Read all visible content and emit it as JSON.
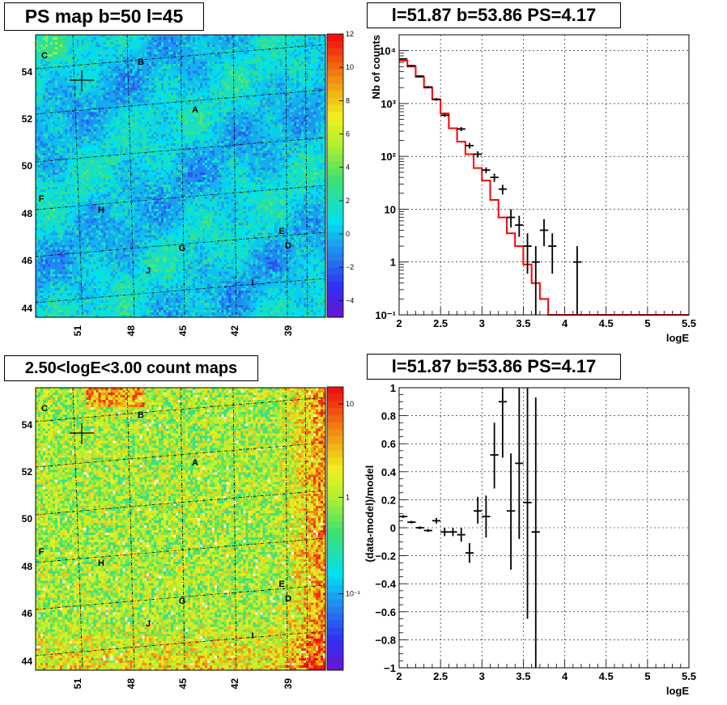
{
  "colors": {
    "data_points": "#000000",
    "model_line": "#ff0000",
    "grid": "#000000",
    "frame": "#000000"
  },
  "panels": {
    "ps_map": {
      "title": "PS map b=50 l=45",
      "y_ticks": [
        "54",
        "52",
        "50",
        "48",
        "46",
        "44"
      ],
      "x_ticks": [
        "51",
        "48",
        "45",
        "42",
        "39"
      ],
      "colorbar_ticks": [
        "12",
        "10",
        "8",
        "6",
        "4",
        "2",
        "0",
        "−2",
        "−4"
      ],
      "colorbar_range": [
        -5,
        12
      ],
      "labels": [
        "C",
        "B",
        "A",
        "F",
        "H",
        "E",
        "D",
        "G",
        "J",
        "I"
      ]
    },
    "count_map": {
      "title": "2.50<logE<3.00 count maps",
      "y_ticks": [
        "54",
        "52",
        "50",
        "48",
        "46",
        "44"
      ],
      "x_ticks": [
        "51",
        "48",
        "45",
        "42",
        "39"
      ],
      "colorbar_ticks": [
        "10",
        "1",
        "10⁻¹"
      ],
      "colorbar_scale": "log",
      "labels": [
        "C",
        "B",
        "A",
        "F",
        "H",
        "E",
        "D",
        "G",
        "J",
        "I"
      ]
    }
  },
  "chart_data": [
    {
      "type": "line",
      "title": "l=51.87 b=53.86 PS=4.17",
      "xlabel": "logE",
      "ylabel": "Nb of counts",
      "xlim": [
        2,
        5.5
      ],
      "ylim": [
        0.1,
        20000
      ],
      "yscale": "log",
      "grid": true,
      "x_ticks": [
        "2",
        "2.5",
        "3",
        "3.5",
        "4",
        "4.5",
        "5",
        "5.5"
      ],
      "y_ticks": [
        "10⁴",
        "10³",
        "10²",
        "10",
        "1",
        "10⁻¹"
      ],
      "points": [
        {
          "x": 2.05,
          "y": 7000,
          "lo": 6800,
          "hi": 7200
        },
        {
          "x": 2.15,
          "y": 5200,
          "lo": 5000,
          "hi": 5400
        },
        {
          "x": 2.25,
          "y": 3300,
          "lo": 3150,
          "hi": 3450
        },
        {
          "x": 2.35,
          "y": 2050,
          "lo": 1950,
          "hi": 2150
        },
        {
          "x": 2.45,
          "y": 1200,
          "lo": 1130,
          "hi": 1270
        },
        {
          "x": 2.55,
          "y": 600,
          "lo": 560,
          "hi": 640
        },
        {
          "x": 2.75,
          "y": 330,
          "lo": 300,
          "hi": 360
        },
        {
          "x": 2.85,
          "y": 160,
          "lo": 140,
          "hi": 180
        },
        {
          "x": 2.95,
          "y": 110,
          "lo": 95,
          "hi": 125
        },
        {
          "x": 3.05,
          "y": 55,
          "lo": 48,
          "hi": 62
        },
        {
          "x": 3.15,
          "y": 40,
          "lo": 33,
          "hi": 47
        },
        {
          "x": 3.25,
          "y": 24,
          "lo": 19,
          "hi": 29
        },
        {
          "x": 3.35,
          "y": 7,
          "lo": 4.5,
          "hi": 10
        },
        {
          "x": 3.45,
          "y": 5,
          "lo": 3,
          "hi": 7.5
        },
        {
          "x": 3.55,
          "y": 2,
          "lo": 0.6,
          "hi": 3.5
        },
        {
          "x": 3.65,
          "y": 1,
          "lo": 0.1,
          "hi": 2
        },
        {
          "x": 3.75,
          "y": 4,
          "lo": 2,
          "hi": 6.5
        },
        {
          "x": 3.85,
          "y": 2,
          "lo": 0.6,
          "hi": 3.5
        },
        {
          "x": 4.15,
          "y": 1,
          "lo": 0.1,
          "hi": 2
        }
      ],
      "model": {
        "edges": [
          2.0,
          2.1,
          2.2,
          2.3,
          2.4,
          2.5,
          2.6,
          2.7,
          2.8,
          2.9,
          3.0,
          3.1,
          3.2,
          3.3,
          3.4,
          3.5,
          3.6,
          3.7,
          3.8,
          3.9,
          4.0,
          5.5
        ],
        "values": [
          6500,
          5000,
          3200,
          2000,
          1200,
          650,
          340,
          190,
          110,
          60,
          35,
          15,
          7,
          3.5,
          2,
          0.9,
          0.4,
          0.2,
          0.1,
          0.1,
          0.1
        ]
      }
    },
    {
      "type": "scatter",
      "title": "l=51.87 b=53.86 PS=4.17",
      "xlabel": "logE",
      "ylabel": "(data-model)/model",
      "xlim": [
        2,
        5.5
      ],
      "ylim": [
        -1,
        1
      ],
      "grid": true,
      "x_ticks": [
        "2",
        "2.5",
        "3",
        "3.5",
        "4",
        "4.5",
        "5",
        "5.5"
      ],
      "y_ticks": [
        "1",
        "0.8",
        "0.6",
        "0.4",
        "0.2",
        "0",
        "−0.2",
        "−0.4",
        "−0.6",
        "−0.8",
        "−1"
      ],
      "points": [
        {
          "x": 2.05,
          "y": 0.08,
          "lo": 0.07,
          "hi": 0.09
        },
        {
          "x": 2.15,
          "y": 0.04,
          "lo": 0.03,
          "hi": 0.05
        },
        {
          "x": 2.25,
          "y": 0.0,
          "lo": -0.01,
          "hi": 0.01
        },
        {
          "x": 2.35,
          "y": -0.02,
          "lo": -0.03,
          "hi": -0.01
        },
        {
          "x": 2.45,
          "y": 0.05,
          "lo": 0.03,
          "hi": 0.07
        },
        {
          "x": 2.55,
          "y": -0.03,
          "lo": -0.06,
          "hi": 0.0
        },
        {
          "x": 2.65,
          "y": -0.03,
          "lo": -0.06,
          "hi": 0.0
        },
        {
          "x": 2.75,
          "y": -0.05,
          "lo": -0.1,
          "hi": 0.0
        },
        {
          "x": 2.85,
          "y": -0.18,
          "lo": -0.25,
          "hi": -0.11
        },
        {
          "x": 2.95,
          "y": 0.12,
          "lo": 0.03,
          "hi": 0.22
        },
        {
          "x": 3.05,
          "y": 0.08,
          "lo": -0.07,
          "hi": 0.23
        },
        {
          "x": 3.15,
          "y": 0.52,
          "lo": 0.28,
          "hi": 0.75
        },
        {
          "x": 3.25,
          "y": 0.9,
          "lo": 0.5,
          "hi": 1.0
        },
        {
          "x": 3.35,
          "y": 0.12,
          "lo": -0.3,
          "hi": 0.53
        },
        {
          "x": 3.45,
          "y": 0.46,
          "lo": -0.08,
          "hi": 1.0
        },
        {
          "x": 3.55,
          "y": 0.18,
          "lo": -0.65,
          "hi": 1.0
        },
        {
          "x": 3.65,
          "y": -0.03,
          "lo": -1.0,
          "hi": 0.93
        }
      ]
    }
  ]
}
